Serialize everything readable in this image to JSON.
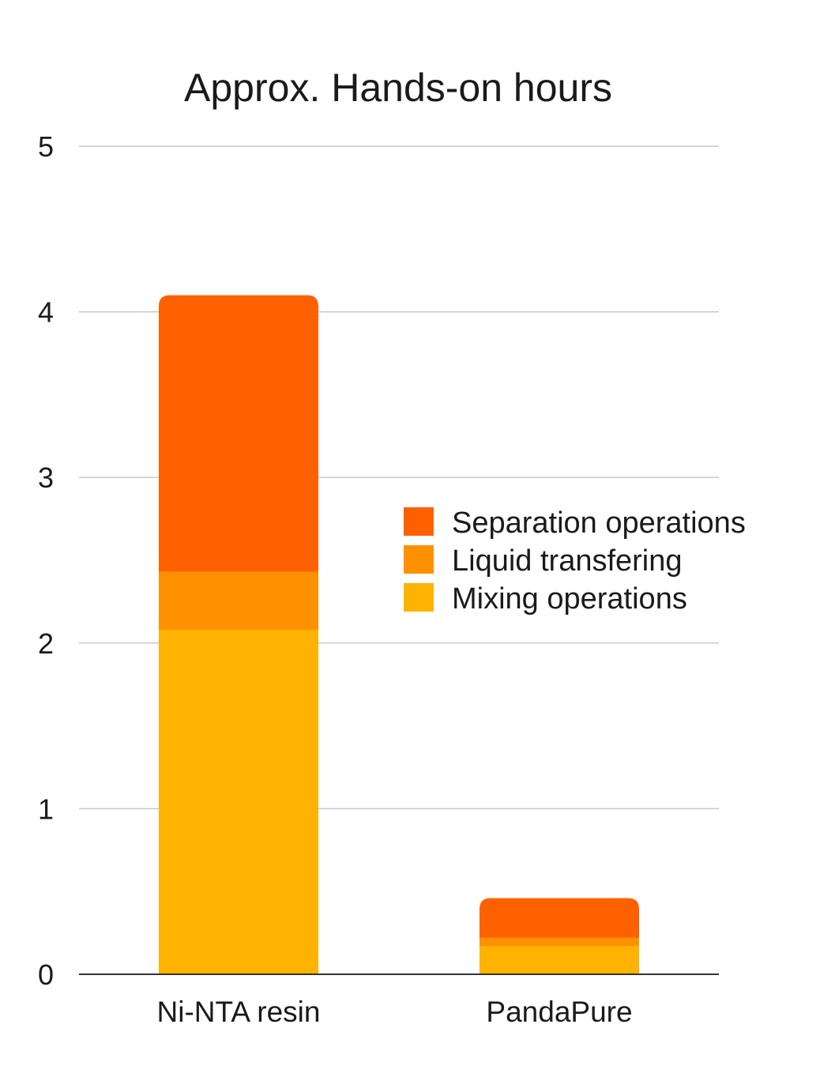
{
  "chart_data": {
    "type": "bar",
    "stacked": true,
    "title": "Approx. Hands-on hours",
    "xlabel": "",
    "ylabel": "",
    "ylim": [
      0,
      5
    ],
    "yticks": [
      "0",
      "1",
      "2",
      "3",
      "4",
      "5"
    ],
    "grid": true,
    "legend_position": "right",
    "categories": [
      "Ni-NTA resin",
      "PandaPure"
    ],
    "series": [
      {
        "name": "Mixing operations",
        "color": "#FFB300",
        "values": [
          2.08,
          0.17
        ]
      },
      {
        "name": "Liquid transfering",
        "color": "#FF9100",
        "values": [
          0.35,
          0.05
        ]
      },
      {
        "name": "Separation operations",
        "color": "#FF6100",
        "values": [
          1.67,
          0.24
        ]
      }
    ]
  }
}
